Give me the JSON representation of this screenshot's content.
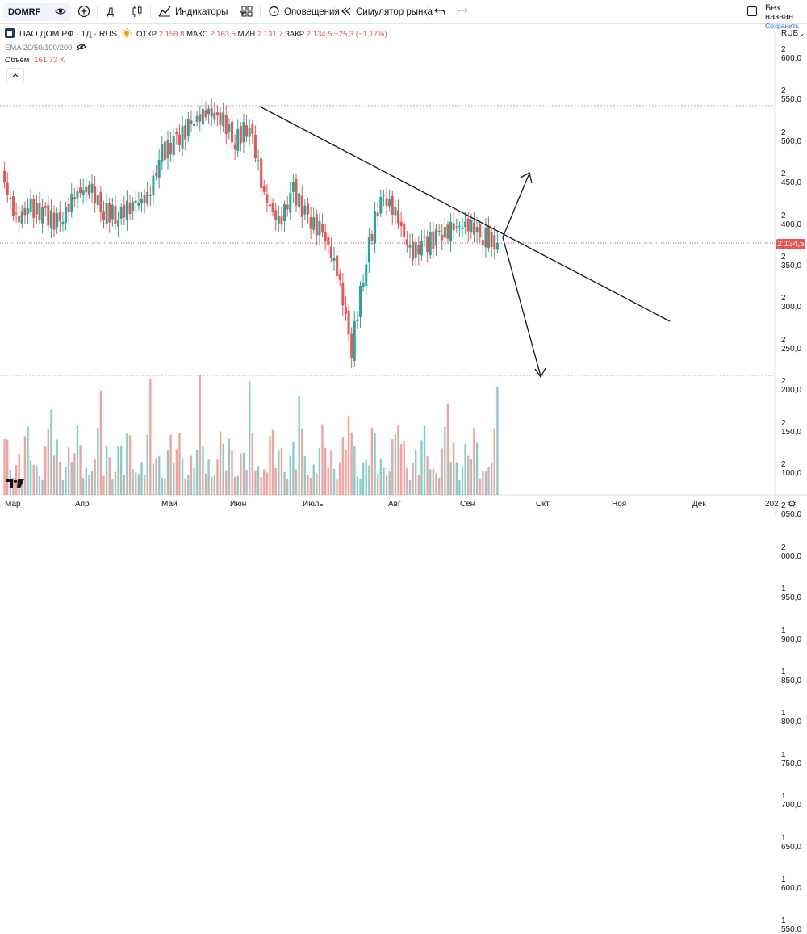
{
  "toolbar": {
    "symbol": "DOMRF",
    "interval": "Д",
    "indicators_label": "Индикаторы",
    "alerts_label": "Оповещения",
    "replay_label": "Симулятор рынка",
    "layout_name": "Без назван",
    "save_label": "Сохранить"
  },
  "header": {
    "title": "ПАО ДОМ.РФ · 1Д · RUS",
    "open_label": "ОТКР",
    "open": "2 159,8",
    "high_label": "МАКС",
    "high": "2 163,5",
    "low_label": "МИН",
    "low": "2 131,7",
    "close_label": "ЗАКР",
    "close": "2 134,5",
    "change": "−25,3 (−1,17%)"
  },
  "indicators": {
    "ema": "EMA 20/50/100/200",
    "volume_label": "Объём",
    "volume_value": "161,73 K"
  },
  "price_axis": {
    "currency": "RUB",
    "ticks": [
      "2 600,0",
      "2 550,0",
      "2 500,0",
      "2 450,0",
      "2 400,0",
      "2 350,0",
      "2 300,0",
      "2 250,0",
      "2 200,0",
      "2 150,0",
      "2 100,0",
      "2 050,0",
      "2 000,0",
      "1 950,0",
      "1 900,0",
      "1 850,0",
      "1 800,0",
      "1 750,0",
      "1 700,0",
      "1 650,0",
      "1 600,0",
      "1 550,0"
    ],
    "last_price": "2 134,5"
  },
  "time_axis": {
    "labels": [
      "Мар",
      "Апр",
      "Май",
      "Июн",
      "Июль",
      "Авг",
      "Сен",
      "Окт",
      "Ноя",
      "Дек",
      "202"
    ]
  },
  "colors": {
    "up": "#26a69a",
    "down": "#ef5350",
    "accent": "#2962ff"
  },
  "chart_data": {
    "type": "candlestick",
    "currency": "RUB",
    "interval": "1D",
    "ylim": [
      1530,
      2640
    ],
    "series": [
      {
        "name": "close_approx_weekly",
        "values": [
          2300,
          2190,
          2220,
          2200,
          2180,
          2250,
          2270,
          2210,
          2200,
          2230,
          2240,
          2350,
          2380,
          2420,
          2450,
          2440,
          2380,
          2420,
          2250,
          2180,
          2260,
          2190,
          2160,
          2070,
          1880,
          2100,
          2250,
          2210,
          2110,
          2130,
          2150,
          2170,
          2180,
          2150,
          2134.5
        ]
      }
    ],
    "drawings": [
      {
        "type": "trend_line",
        "from_price": 2465,
        "to_price": 1950
      },
      {
        "type": "arrow",
        "direction": "up",
        "target_price": 2300
      },
      {
        "type": "arrow",
        "direction": "down",
        "target_price": 1820
      }
    ]
  }
}
